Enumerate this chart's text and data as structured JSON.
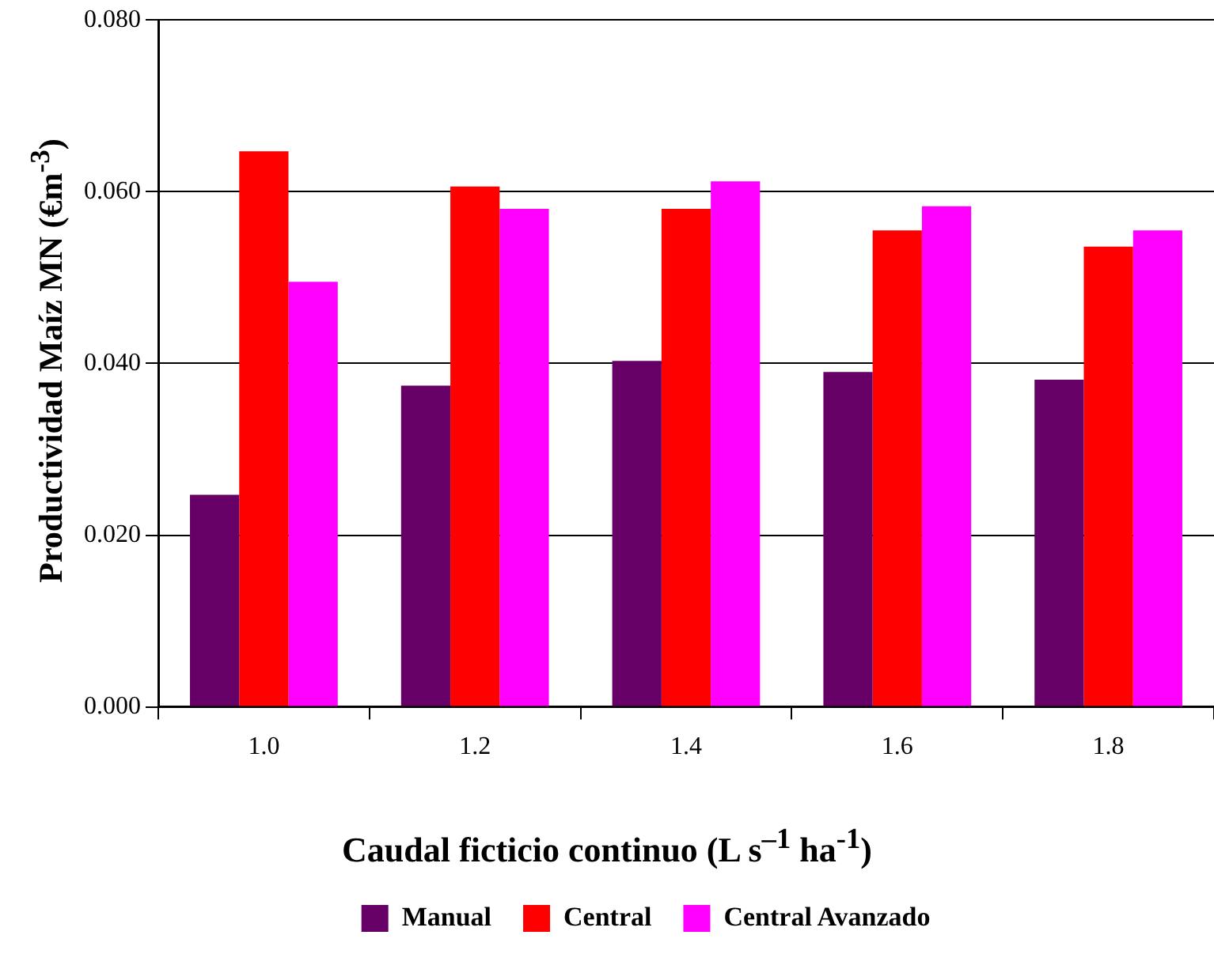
{
  "chart_data": {
    "type": "bar",
    "xlabel": "Caudal ficticio continuo (L s$^{–1}$ ha$^{-1}$)",
    "ylabel": "Productividad Maíz MN (€m$^{-3}$)",
    "categories": [
      "1.0",
      "1.2",
      "1.4",
      "1.6",
      "1.8"
    ],
    "series": [
      {
        "name": "Manual",
        "color": "#660066",
        "values": [
          0.0247,
          0.0374,
          0.0403,
          0.039,
          0.0381
        ]
      },
      {
        "name": "Central",
        "color": "#ff0000",
        "values": [
          0.0647,
          0.0606,
          0.058,
          0.0555,
          0.0536
        ]
      },
      {
        "name": "Central Avanzado",
        "color": "#ff00ff",
        "values": [
          0.0495,
          0.058,
          0.0612,
          0.0583,
          0.0555
        ]
      }
    ],
    "ylim": [
      0,
      0.08
    ],
    "yticks": [
      {
        "value": 0,
        "label": "0.000"
      },
      {
        "value": 0.02,
        "label": "0.020"
      },
      {
        "value": 0.04,
        "label": "0.040"
      },
      {
        "value": 0.06,
        "label": "0.060"
      },
      {
        "value": 0.08,
        "label": "0.080"
      }
    ],
    "grid": "y",
    "legend": "bottom"
  }
}
